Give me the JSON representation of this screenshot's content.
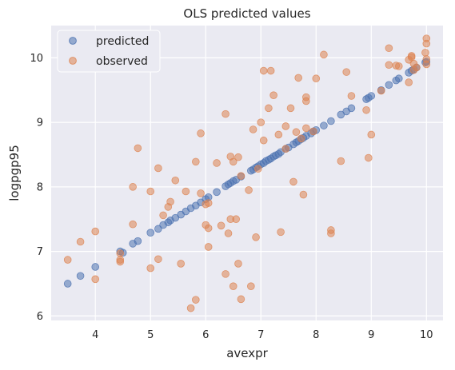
{
  "chart_data": {
    "type": "scatter",
    "title": "OLS predicted values",
    "xlabel": "avexpr",
    "ylabel": "logpgp95",
    "xlim": [
      3.2,
      10.3
    ],
    "ylim": [
      5.93,
      10.5
    ],
    "xticks": [
      4,
      5,
      6,
      7,
      8,
      9,
      10
    ],
    "yticks": [
      6,
      7,
      8,
      9,
      10
    ],
    "grid": true,
    "legend_position": "top-left",
    "series": [
      {
        "name": "predicted",
        "color": "#4c72b0",
        "points": [
          [
            3.5,
            6.5
          ],
          [
            3.73,
            6.62
          ],
          [
            4.0,
            6.76
          ],
          [
            4.45,
            7.0
          ],
          [
            4.5,
            6.98
          ],
          [
            4.68,
            7.12
          ],
          [
            4.77,
            7.16
          ],
          [
            5.0,
            7.29
          ],
          [
            5.14,
            7.35
          ],
          [
            5.23,
            7.41
          ],
          [
            5.32,
            7.45
          ],
          [
            5.36,
            7.48
          ],
          [
            5.45,
            7.52
          ],
          [
            5.55,
            7.57
          ],
          [
            5.64,
            7.62
          ],
          [
            5.73,
            7.67
          ],
          [
            5.82,
            7.71
          ],
          [
            5.91,
            7.76
          ],
          [
            6.0,
            7.81
          ],
          [
            6.05,
            7.84
          ],
          [
            6.2,
            7.92
          ],
          [
            6.36,
            8.01
          ],
          [
            6.41,
            8.04
          ],
          [
            6.45,
            8.06
          ],
          [
            6.5,
            8.09
          ],
          [
            6.55,
            8.11
          ],
          [
            6.64,
            8.16
          ],
          [
            6.82,
            8.25
          ],
          [
            6.86,
            8.27
          ],
          [
            6.91,
            8.3
          ],
          [
            6.95,
            8.32
          ],
          [
            7.0,
            8.35
          ],
          [
            7.05,
            8.37
          ],
          [
            7.09,
            8.4
          ],
          [
            7.14,
            8.42
          ],
          [
            7.18,
            8.44
          ],
          [
            7.23,
            8.47
          ],
          [
            7.27,
            8.49
          ],
          [
            7.32,
            8.51
          ],
          [
            7.36,
            8.54
          ],
          [
            7.45,
            8.59
          ],
          [
            7.5,
            8.61
          ],
          [
            7.59,
            8.66
          ],
          [
            7.64,
            8.69
          ],
          [
            7.68,
            8.71
          ],
          [
            7.73,
            8.74
          ],
          [
            7.77,
            8.76
          ],
          [
            7.82,
            8.79
          ],
          [
            7.91,
            8.83
          ],
          [
            7.95,
            8.86
          ],
          [
            8.0,
            8.88
          ],
          [
            8.14,
            8.95
          ],
          [
            8.27,
            9.02
          ],
          [
            8.45,
            9.12
          ],
          [
            8.55,
            9.17
          ],
          [
            8.64,
            9.22
          ],
          [
            8.91,
            9.36
          ],
          [
            8.95,
            9.38
          ],
          [
            9.0,
            9.41
          ],
          [
            9.18,
            9.5
          ],
          [
            9.32,
            9.58
          ],
          [
            9.45,
            9.65
          ],
          [
            9.5,
            9.68
          ],
          [
            9.68,
            9.77
          ],
          [
            9.73,
            9.8
          ],
          [
            9.77,
            9.82
          ],
          [
            9.82,
            9.85
          ],
          [
            9.98,
            9.93
          ],
          [
            10.0,
            9.94
          ]
        ]
      },
      {
        "name": "observed",
        "color": "#dd8452",
        "points": [
          [
            3.5,
            6.87
          ],
          [
            3.73,
            7.15
          ],
          [
            4.0,
            7.31
          ],
          [
            4.0,
            6.57
          ],
          [
            4.45,
            6.84
          ],
          [
            4.45,
            6.87
          ],
          [
            4.45,
            6.97
          ],
          [
            4.68,
            7.42
          ],
          [
            4.68,
            8.0
          ],
          [
            4.77,
            8.6
          ],
          [
            5.0,
            7.93
          ],
          [
            5.0,
            6.74
          ],
          [
            5.14,
            8.29
          ],
          [
            5.14,
            6.88
          ],
          [
            5.23,
            7.56
          ],
          [
            5.32,
            7.69
          ],
          [
            5.36,
            7.77
          ],
          [
            5.45,
            8.1
          ],
          [
            5.55,
            6.81
          ],
          [
            5.64,
            7.93
          ],
          [
            5.73,
            6.12
          ],
          [
            5.82,
            6.25
          ],
          [
            5.82,
            8.39
          ],
          [
            5.91,
            8.83
          ],
          [
            5.91,
            7.9
          ],
          [
            6.0,
            7.73
          ],
          [
            6.0,
            7.41
          ],
          [
            6.05,
            7.75
          ],
          [
            6.05,
            7.07
          ],
          [
            6.05,
            7.36
          ],
          [
            6.2,
            8.37
          ],
          [
            6.28,
            7.4
          ],
          [
            6.36,
            6.65
          ],
          [
            6.36,
            9.13
          ],
          [
            6.41,
            7.28
          ],
          [
            6.45,
            8.47
          ],
          [
            6.45,
            7.5
          ],
          [
            6.5,
            6.46
          ],
          [
            6.5,
            8.39
          ],
          [
            6.55,
            7.5
          ],
          [
            6.59,
            8.46
          ],
          [
            6.59,
            6.81
          ],
          [
            6.64,
            6.26
          ],
          [
            6.64,
            8.17
          ],
          [
            6.78,
            7.95
          ],
          [
            6.82,
            6.46
          ],
          [
            6.86,
            8.89
          ],
          [
            6.91,
            7.22
          ],
          [
            6.95,
            8.28
          ],
          [
            7.0,
            9.0
          ],
          [
            7.05,
            9.8
          ],
          [
            7.05,
            8.72
          ],
          [
            7.14,
            9.22
          ],
          [
            7.18,
            9.8
          ],
          [
            7.23,
            9.42
          ],
          [
            7.32,
            8.81
          ],
          [
            7.36,
            7.3
          ],
          [
            7.45,
            8.94
          ],
          [
            7.45,
            8.59
          ],
          [
            7.54,
            9.22
          ],
          [
            7.59,
            8.08
          ],
          [
            7.64,
            8.85
          ],
          [
            7.68,
            9.69
          ],
          [
            7.73,
            8.75
          ],
          [
            7.77,
            7.88
          ],
          [
            7.82,
            9.39
          ],
          [
            7.82,
            9.33
          ],
          [
            7.82,
            8.91
          ],
          [
            7.95,
            8.86
          ],
          [
            8.0,
            9.68
          ],
          [
            8.14,
            10.05
          ],
          [
            8.27,
            7.33
          ],
          [
            8.27,
            7.28
          ],
          [
            8.45,
            8.4
          ],
          [
            8.55,
            9.78
          ],
          [
            8.64,
            9.41
          ],
          [
            8.91,
            9.19
          ],
          [
            8.95,
            8.45
          ],
          [
            9.0,
            8.81
          ],
          [
            9.18,
            9.49
          ],
          [
            9.32,
            10.15
          ],
          [
            9.32,
            9.89
          ],
          [
            9.45,
            9.88
          ],
          [
            9.5,
            9.87
          ],
          [
            9.68,
            9.97
          ],
          [
            9.68,
            9.62
          ],
          [
            9.73,
            10.01
          ],
          [
            9.73,
            10.03
          ],
          [
            9.77,
            9.81
          ],
          [
            9.77,
            9.91
          ],
          [
            9.82,
            9.85
          ],
          [
            9.98,
            10.08
          ],
          [
            10.0,
            10.3
          ],
          [
            10.0,
            10.22
          ],
          [
            10.0,
            9.98
          ],
          [
            10.0,
            9.9
          ]
        ]
      }
    ]
  }
}
